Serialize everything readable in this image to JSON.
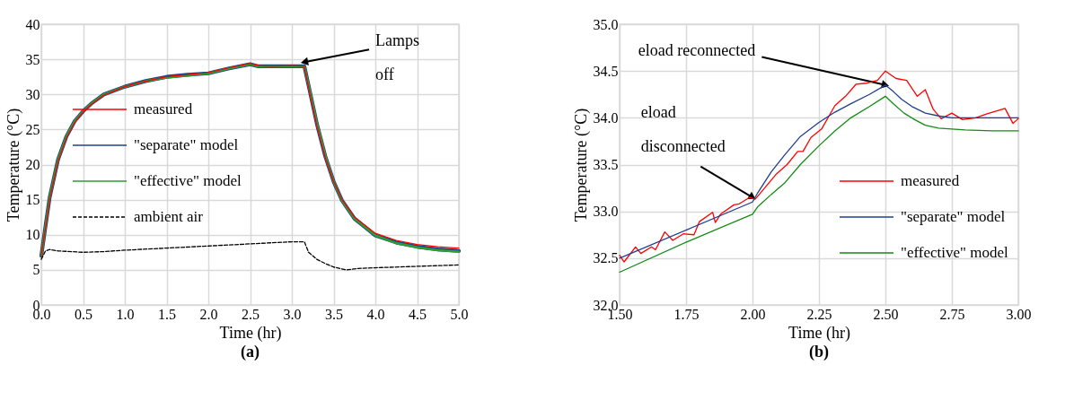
{
  "chart_data": [
    {
      "type": "line",
      "title": "(a)",
      "xlabel": "Time (hr)",
      "ylabel": "Temperature (°C)",
      "xlim": [
        0,
        5
      ],
      "xticks": [
        {
          "value": 0,
          "label": "0.0"
        },
        {
          "value": 0.5,
          "label": "0.5"
        },
        {
          "value": 1,
          "label": "1.0"
        },
        {
          "value": 1.5,
          "label": "1.5"
        },
        {
          "value": 2,
          "label": "2.0"
        },
        {
          "value": 2.5,
          "label": "2.5"
        },
        {
          "value": 3,
          "label": "3.0"
        },
        {
          "value": 3.5,
          "label": "3.5"
        },
        {
          "value": 4,
          "label": "4.0"
        },
        {
          "value": 4.5,
          "label": "4.5"
        },
        {
          "value": 5,
          "label": "5.0"
        }
      ],
      "ylim": [
        0,
        40
      ],
      "yticks": [
        0,
        5,
        10,
        15,
        20,
        25,
        30,
        35,
        40
      ],
      "grid": true,
      "legend": "center left",
      "annotations": [
        {
          "text": "Lamps off",
          "x": 3.15,
          "y": 34.6
        }
      ],
      "series": [
        {
          "name": "measured",
          "color": "#ff0000",
          "x": [
            0,
            0.05,
            0.1,
            0.2,
            0.3,
            0.4,
            0.5,
            0.6,
            0.75,
            1.0,
            1.25,
            1.5,
            1.75,
            2.0,
            2.25,
            2.5,
            2.6,
            2.75,
            3.0,
            3.15,
            3.2,
            3.3,
            3.4,
            3.5,
            3.6,
            3.75,
            4.0,
            4.25,
            4.5,
            4.75,
            5.0
          ],
          "values": [
            7,
            11,
            15,
            20.5,
            23.8,
            26,
            27.5,
            28.6,
            29.9,
            31.1,
            31.9,
            32.5,
            32.8,
            33.1,
            33.8,
            34.4,
            34.1,
            34.0,
            34.1,
            34.0,
            31,
            25.5,
            21,
            17.6,
            15,
            12.5,
            10.2,
            9.2,
            8.6,
            8.3,
            8.1
          ]
        },
        {
          "name": "\"separate\" model",
          "color": "#1f3f8f",
          "x": [
            0,
            0.05,
            0.1,
            0.2,
            0.3,
            0.4,
            0.5,
            0.6,
            0.75,
            1.0,
            1.25,
            1.5,
            1.75,
            2.0,
            2.25,
            2.5,
            2.6,
            2.75,
            3.0,
            3.15,
            3.2,
            3.3,
            3.4,
            3.5,
            3.6,
            3.75,
            4.0,
            4.25,
            4.5,
            4.75,
            5.0
          ],
          "values": [
            7,
            11.2,
            15.3,
            20.7,
            24,
            26.2,
            27.6,
            28.7,
            30,
            31.1,
            31.9,
            32.5,
            32.8,
            33.0,
            33.7,
            34.3,
            34.0,
            34.0,
            34.0,
            34.0,
            31.3,
            25.8,
            21.2,
            17.6,
            14.9,
            12.3,
            9.9,
            8.9,
            8.3,
            7.9,
            7.7
          ]
        },
        {
          "name": "\"effective\" model",
          "color": "#2e9e2e",
          "x": [
            0,
            0.05,
            0.1,
            0.2,
            0.3,
            0.4,
            0.5,
            0.6,
            0.75,
            1.0,
            1.25,
            1.5,
            1.75,
            2.0,
            2.25,
            2.5,
            2.6,
            2.75,
            3.0,
            3.15,
            3.2,
            3.3,
            3.4,
            3.5,
            3.6,
            3.75,
            4.0,
            4.25,
            4.5,
            4.75,
            5.0
          ],
          "values": [
            7,
            11.2,
            15.3,
            20.7,
            24,
            26.2,
            27.6,
            28.7,
            30,
            31.1,
            31.9,
            32.4,
            32.7,
            33.0,
            33.7,
            34.3,
            34.0,
            34.0,
            34.0,
            34.0,
            31.4,
            25.9,
            21.3,
            17.6,
            14.9,
            12.3,
            9.9,
            8.8,
            8.2,
            7.8,
            7.6
          ]
        },
        {
          "name": "ambient air",
          "color": "#000000",
          "line_style": "dashed",
          "x": [
            0,
            0.05,
            0.1,
            0.2,
            0.5,
            0.75,
            1.0,
            1.5,
            2.0,
            2.5,
            3.0,
            3.15,
            3.2,
            3.3,
            3.4,
            3.5,
            3.65,
            3.8,
            4.0,
            4.5,
            5.0
          ],
          "values": [
            6.5,
            7.7,
            7.9,
            7.7,
            7.5,
            7.6,
            7.8,
            8.1,
            8.4,
            8.7,
            9.0,
            9.0,
            7.5,
            6.5,
            5.9,
            5.4,
            5.0,
            5.2,
            5.3,
            5.5,
            5.7
          ]
        }
      ]
    },
    {
      "type": "line",
      "title": "(b)",
      "xlabel": "Time (hr)",
      "ylabel": "Temperature (°C)",
      "xlim": [
        1.5,
        3.0
      ],
      "xticks": [
        {
          "value": 1.5,
          "label": "1.50"
        },
        {
          "value": 1.75,
          "label": "1.75"
        },
        {
          "value": 2,
          "label": "2.00"
        },
        {
          "value": 2.25,
          "label": "2.25"
        },
        {
          "value": 2.5,
          "label": "2.50"
        },
        {
          "value": 2.75,
          "label": "2.75"
        },
        {
          "value": 3,
          "label": "3.00"
        }
      ],
      "ylim": [
        32,
        35
      ],
      "yticks": [
        {
          "value": 32,
          "label": "32.0"
        },
        {
          "value": 32.5,
          "label": "32.5"
        },
        {
          "value": 33,
          "label": "33.0"
        },
        {
          "value": 33.5,
          "label": "33.5"
        },
        {
          "value": 34,
          "label": "34.0"
        },
        {
          "value": 34.5,
          "label": "34.5"
        },
        {
          "value": 35,
          "label": "35.0"
        }
      ],
      "grid": true,
      "legend": "bottom right",
      "annotations": [
        {
          "text": "eload reconnected",
          "x": 2.5,
          "y": 34.35
        },
        {
          "text": "eload disconnected",
          "x": 2.0,
          "y": 33.15
        }
      ],
      "series": [
        {
          "name": "measured",
          "color": "#ff0000",
          "x": [
            1.5,
            1.517,
            1.56,
            1.58,
            1.62,
            1.635,
            1.67,
            1.7,
            1.74,
            1.78,
            1.8,
            1.85,
            1.86,
            1.88,
            1.93,
            1.95,
            1.99,
            2.01,
            2.04,
            2.09,
            2.13,
            2.17,
            2.19,
            2.22,
            2.26,
            2.31,
            2.35,
            2.39,
            2.43,
            2.47,
            2.5,
            2.54,
            2.58,
            2.62,
            2.65,
            2.68,
            2.71,
            2.75,
            2.79,
            2.84,
            2.88,
            2.95,
            2.98,
            3.0
          ],
          "values": [
            32.53,
            32.46,
            32.62,
            32.55,
            32.62,
            32.59,
            32.78,
            32.69,
            32.76,
            32.75,
            32.89,
            32.99,
            32.88,
            32.97,
            33.07,
            33.08,
            33.15,
            33.13,
            33.23,
            33.4,
            33.5,
            33.64,
            33.64,
            33.79,
            33.88,
            34.13,
            34.23,
            34.36,
            34.37,
            34.4,
            34.5,
            34.42,
            34.4,
            34.23,
            34.3,
            34.09,
            33.99,
            34.05,
            33.98,
            34.0,
            34.04,
            34.1,
            33.94,
            33.99
          ]
        },
        {
          "name": "\"separate\" model",
          "color": "#1f3f8f",
          "x": [
            1.5,
            1.75,
            2.0,
            2.02,
            2.07,
            2.12,
            2.18,
            2.25,
            2.31,
            2.37,
            2.44,
            2.5,
            2.53,
            2.56,
            2.6,
            2.65,
            2.7,
            2.75,
            2.85,
            3.0
          ],
          "values": [
            32.5,
            32.8,
            33.1,
            33.2,
            33.42,
            33.6,
            33.8,
            33.95,
            34.06,
            34.15,
            34.25,
            34.35,
            34.28,
            34.2,
            34.12,
            34.05,
            34.02,
            34.0,
            34.0,
            34.0
          ]
        },
        {
          "name": "\"effective\" model",
          "color": "#138a13",
          "x": [
            1.5,
            1.75,
            2.0,
            2.02,
            2.07,
            2.12,
            2.18,
            2.25,
            2.31,
            2.37,
            2.44,
            2.5,
            2.53,
            2.57,
            2.61,
            2.65,
            2.7,
            2.75,
            2.8,
            2.9,
            3.0
          ],
          "values": [
            32.35,
            32.67,
            32.97,
            33.05,
            33.18,
            33.3,
            33.5,
            33.7,
            33.86,
            34.0,
            34.12,
            34.23,
            34.15,
            34.05,
            33.98,
            33.92,
            33.89,
            33.88,
            33.87,
            33.86,
            33.86
          ]
        }
      ]
    }
  ]
}
